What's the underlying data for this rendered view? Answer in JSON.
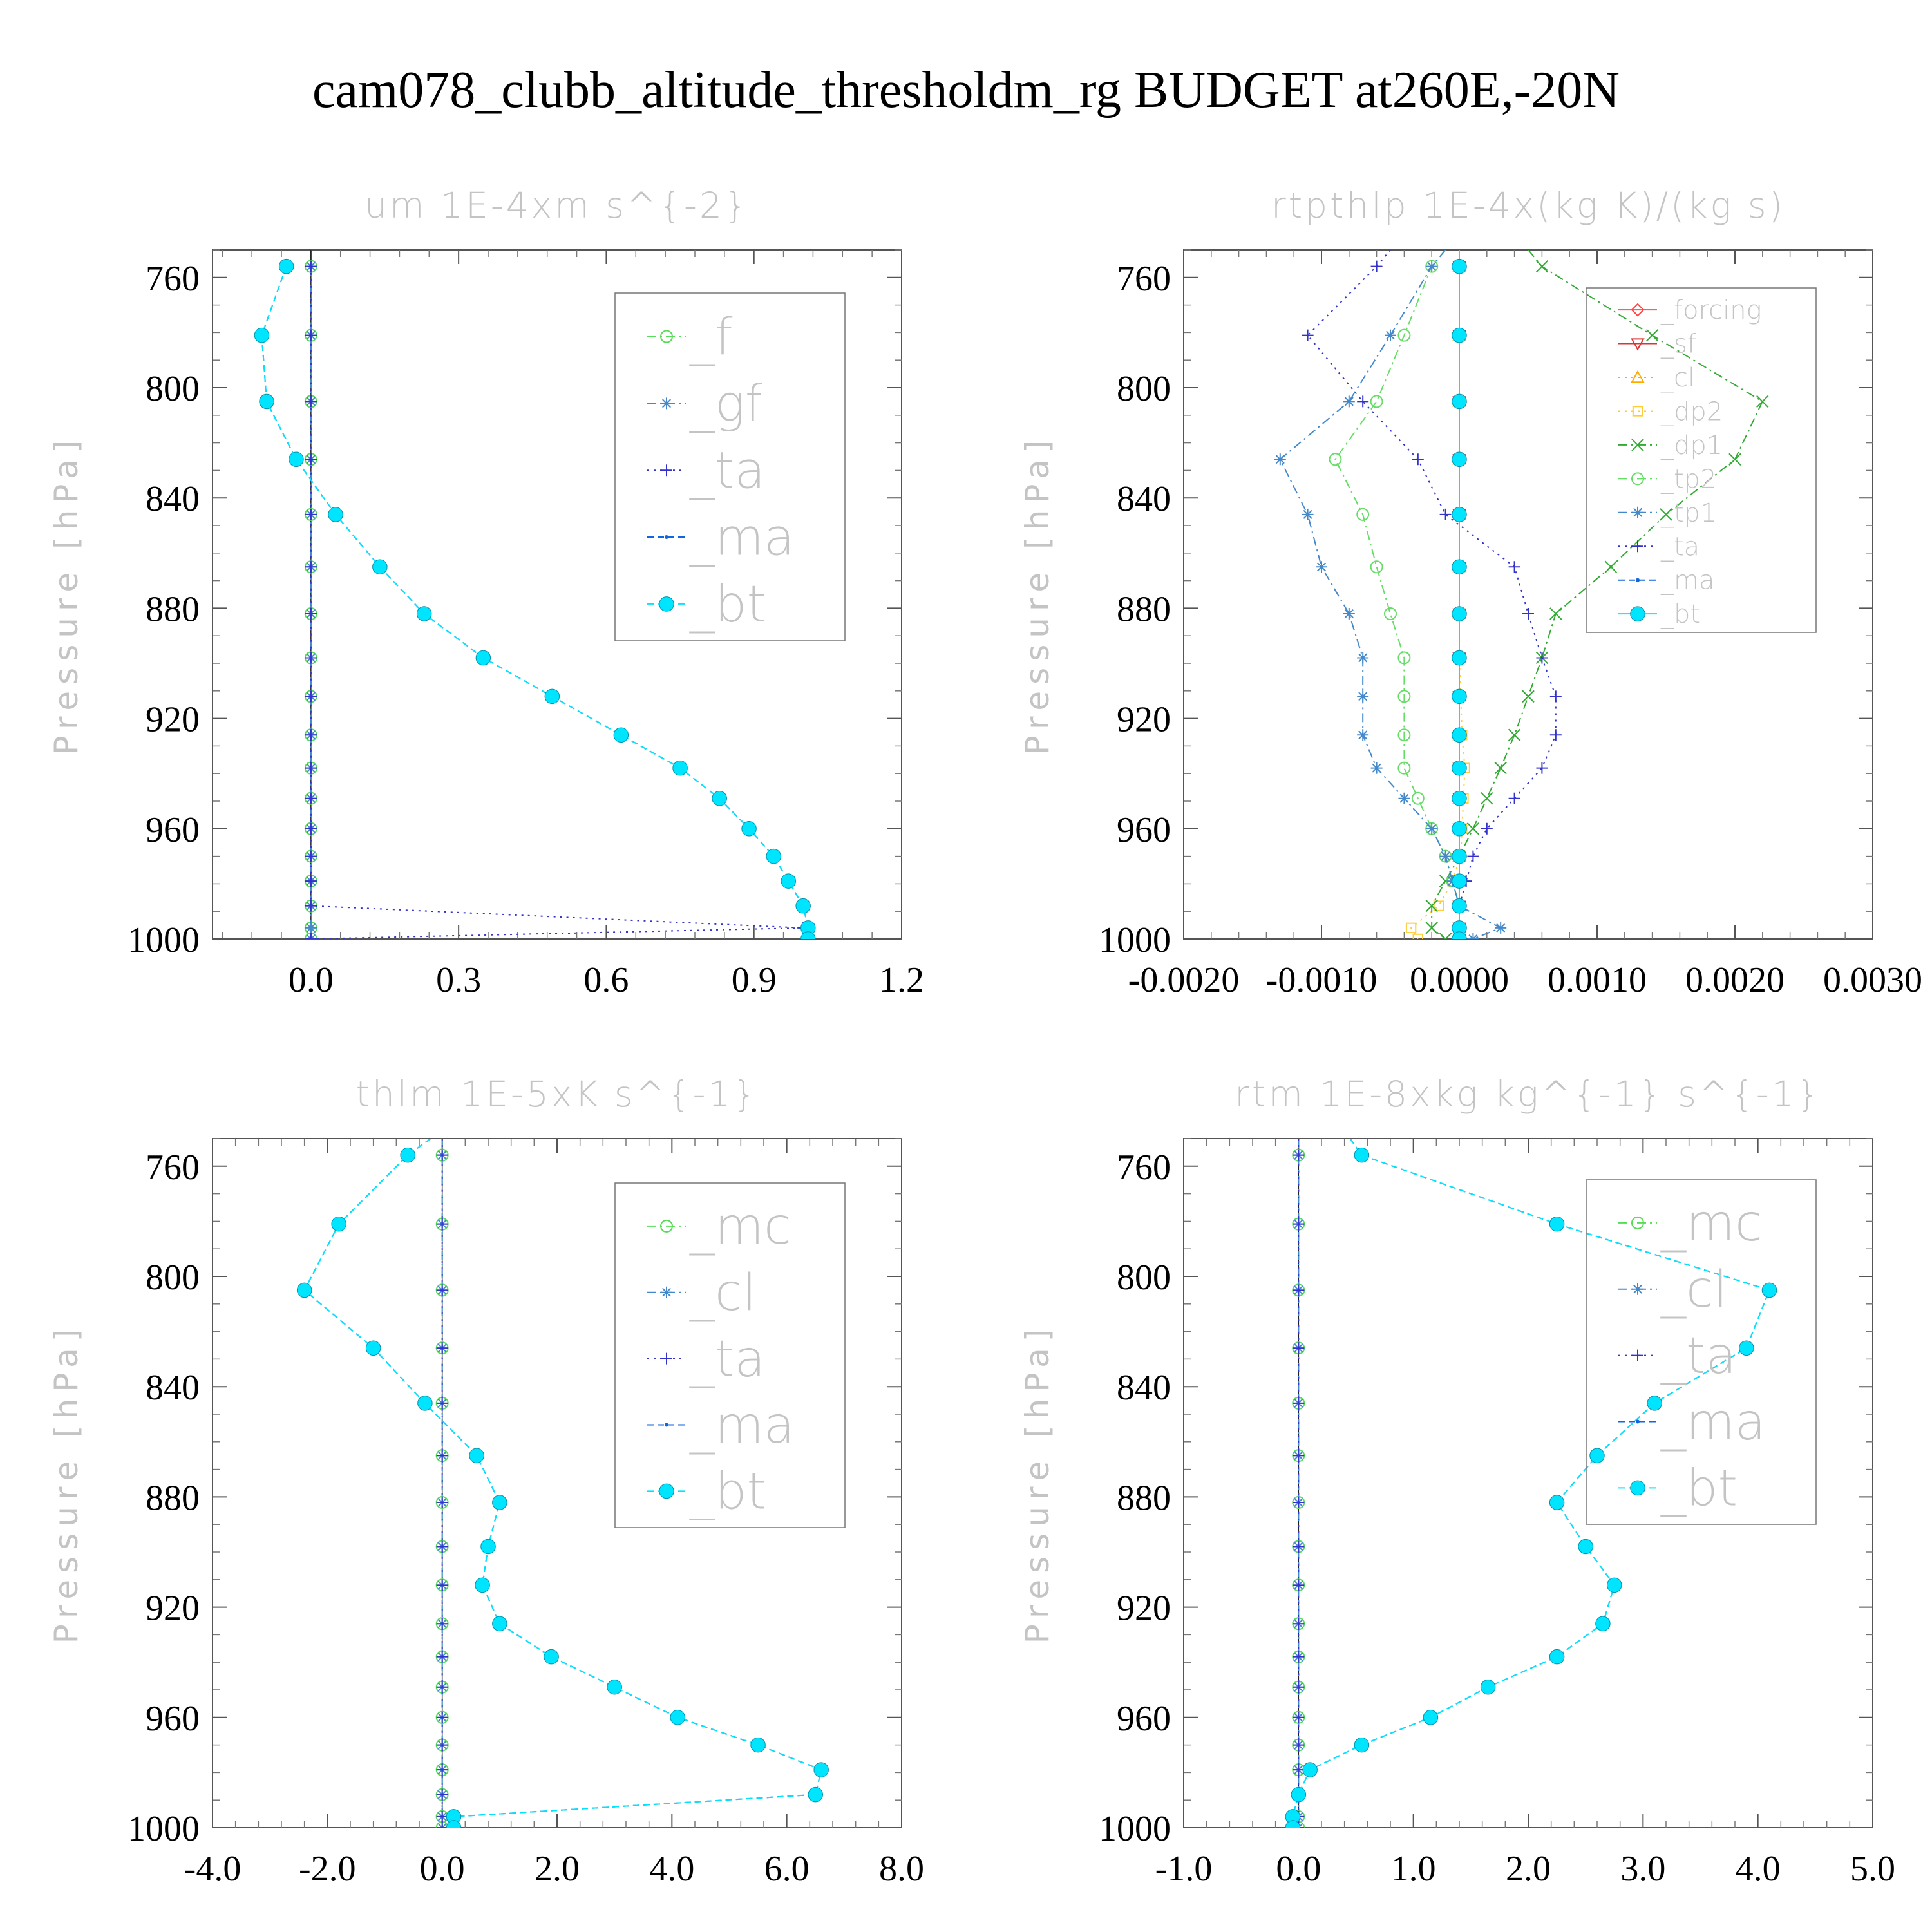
{
  "title": "cam078_clubb_altitude_thresholdm_rg  BUDGET at260E,-20N",
  "chart_data": [
    {
      "type": "line",
      "title": "um   1E-4xm s^{-2}",
      "xlabel": "",
      "ylabel": "Pressure [hPa]",
      "xlim": [
        -0.2,
        1.2
      ],
      "ylim": [
        1000,
        750
      ],
      "y_inverted": true,
      "xticks": [
        "0.0",
        "0.3",
        "0.6",
        "0.9",
        "1.2"
      ],
      "xtick_values": [
        0,
        0.3,
        0.6,
        0.9,
        1.2
      ],
      "yticks": [
        "760",
        "800",
        "840",
        "880",
        "920",
        "960",
        "1000"
      ],
      "ytick_values": [
        760,
        800,
        840,
        880,
        920,
        960,
        1000
      ],
      "legend": {
        "position": "top-right",
        "labels": [
          "_f",
          "_gf",
          "_ta",
          "_ma",
          "_bt"
        ]
      },
      "levels": [
        756,
        781,
        805,
        826,
        846,
        865,
        882,
        898,
        912,
        926,
        938,
        949,
        960,
        970,
        979,
        988,
        996,
        1000
      ],
      "series": [
        {
          "name": "_f",
          "color": "#55dd55",
          "marker": "circle",
          "dash": "dashdot",
          "values": [
            0,
            0,
            0,
            0,
            0,
            0,
            0,
            0,
            0,
            0,
            0,
            0,
            0,
            0,
            0,
            0,
            0,
            0
          ]
        },
        {
          "name": "_gf",
          "color": "#4488cc",
          "marker": "asterisk",
          "dash": "dashdot",
          "values": [
            0,
            0,
            0,
            0,
            0,
            0,
            0,
            0,
            0,
            0,
            0,
            0,
            0,
            0,
            0,
            0,
            0,
            0
          ]
        },
        {
          "name": "_ta",
          "color": "#3333cc",
          "marker": "plus",
          "dash": "dot",
          "values": [
            0,
            0,
            0,
            0,
            0,
            0,
            0,
            0,
            0,
            0,
            0,
            0,
            0,
            0,
            0,
            0,
            1.0,
            0
          ]
        },
        {
          "name": "_ma",
          "color": "#1166dd",
          "marker": "dot",
          "dash": "dash",
          "values": [
            -0.05,
            -0.1,
            -0.09,
            -0.03,
            0.05,
            0.14,
            0.23,
            0.35,
            0.49,
            0.63,
            0.75,
            0.83,
            0.89,
            0.94,
            0.97,
            1.0,
            1.01,
            1.01
          ]
        },
        {
          "name": "_bt",
          "color": "#00e5ff",
          "marker": "filled-circle",
          "dash": "dash",
          "values": [
            -0.05,
            -0.1,
            -0.09,
            -0.03,
            0.05,
            0.14,
            0.23,
            0.35,
            0.49,
            0.63,
            0.75,
            0.83,
            0.89,
            0.94,
            0.97,
            1.0,
            1.01,
            1.01
          ]
        }
      ]
    },
    {
      "type": "line",
      "title": "rtpthlp   1E-4x(kg K)/(kg s)",
      "xlabel": "",
      "ylabel": "Pressure [hPa]",
      "xlim": [
        -0.002,
        0.003
      ],
      "ylim": [
        1000,
        750
      ],
      "y_inverted": true,
      "xticks": [
        "-0.0020",
        "-0.0010",
        "0.0000",
        "0.0010",
        "0.0020",
        "0.0030"
      ],
      "xtick_values": [
        -0.002,
        -0.001,
        0,
        0.001,
        0.002,
        0.003
      ],
      "yticks": [
        "760",
        "800",
        "840",
        "880",
        "920",
        "960",
        "1000"
      ],
      "ytick_values": [
        760,
        800,
        840,
        880,
        920,
        960,
        1000
      ],
      "legend": {
        "position": "top-right",
        "labels": [
          "_forcing",
          "_sf",
          "_cl",
          "_dp2",
          "_dp1",
          "_tp2",
          "_tp1",
          "_ta",
          "_ma",
          "_bt"
        ]
      },
      "levels": [
        750,
        756,
        781,
        805,
        826,
        846,
        865,
        882,
        898,
        912,
        926,
        938,
        949,
        960,
        970,
        979,
        988,
        996,
        1000
      ],
      "series": [
        {
          "name": "_forcing",
          "color": "#ff4444",
          "marker": "diamond",
          "dash": "solid",
          "values": [
            0,
            0,
            0,
            0,
            0,
            0,
            0,
            0,
            0,
            0,
            0,
            0,
            0,
            0,
            0,
            0,
            0,
            0,
            0
          ]
        },
        {
          "name": "_sf",
          "color": "#dd3333",
          "marker": "triangle-down",
          "dash": "solid",
          "values": [
            0,
            0,
            0,
            0,
            0,
            0,
            0,
            0,
            0,
            0,
            0,
            0,
            0,
            0,
            0,
            0,
            0,
            0,
            0
          ]
        },
        {
          "name": "_cl",
          "color": "#ffaa00",
          "marker": "triangle-up",
          "dash": "dot",
          "values": [
            0,
            0,
            0,
            0,
            0,
            0,
            0,
            0,
            0,
            0,
            0,
            0,
            0,
            0,
            0,
            0,
            0,
            0,
            0
          ]
        },
        {
          "name": "_dp2",
          "color": "#ffcc33",
          "marker": "square",
          "dash": "dot",
          "values": [
            0,
            0,
            0,
            0,
            0,
            0,
            0,
            0,
            0,
            1e-05,
            2e-05,
            4e-05,
            3e-05,
            2e-05,
            1e-05,
            -5e-05,
            -0.00015,
            -0.00035,
            -0.0003
          ]
        },
        {
          "name": "_dp1",
          "color": "#33aa33",
          "marker": "x",
          "dash": "dashdot",
          "values": [
            0.0005,
            0.0006,
            0.0014,
            0.0022,
            0.002,
            0.0015,
            0.0011,
            0.0007,
            0.0006,
            0.0005,
            0.0004,
            0.0003,
            0.0002,
            0.0001,
            0,
            -0.0001,
            -0.0002,
            -0.0002,
            -0.0001
          ]
        },
        {
          "name": "_tp2",
          "color": "#66dd66",
          "marker": "circle",
          "dash": "dashdot",
          "values": [
            -0.0001,
            -0.0002,
            -0.0004,
            -0.0006,
            -0.0009,
            -0.0007,
            -0.0006,
            -0.0005,
            -0.0004,
            -0.0004,
            -0.0004,
            -0.0004,
            -0.0003,
            -0.0002,
            -0.0001,
            -5e-05,
            0,
            0,
            0
          ]
        },
        {
          "name": "_tp1",
          "color": "#4488cc",
          "marker": "asterisk",
          "dash": "dashdot",
          "values": [
            -0.0001,
            -0.0002,
            -0.0005,
            -0.0008,
            -0.0013,
            -0.0011,
            -0.001,
            -0.0008,
            -0.0007,
            -0.0007,
            -0.0007,
            -0.0006,
            -0.0004,
            -0.0002,
            -0.0001,
            -5e-05,
            0,
            0.0003,
            0.0001
          ]
        },
        {
          "name": "_ta",
          "color": "#3333cc",
          "marker": "plus",
          "dash": "dot",
          "values": [
            -0.0005,
            -0.0006,
            -0.0011,
            -0.0007,
            -0.0003,
            -0.0001,
            0.0004,
            0.0005,
            0.0006,
            0.0007,
            0.0007,
            0.0006,
            0.0004,
            0.0002,
            0.0001,
            5e-05,
            0,
            0,
            0
          ]
        },
        {
          "name": "_ma",
          "color": "#1166dd",
          "marker": "dot",
          "dash": "dash",
          "values": [
            0,
            0,
            0,
            0,
            0,
            0,
            0,
            0,
            0,
            0,
            0,
            0,
            0,
            0,
            0,
            0,
            0,
            0,
            0
          ]
        },
        {
          "name": "_bt",
          "color": "#00e5ff",
          "marker": "filled-circle",
          "dash": "solid",
          "values": [
            0,
            0,
            0,
            0,
            0,
            0,
            0,
            0,
            0,
            0,
            0,
            0,
            0,
            0,
            0,
            0,
            0,
            0,
            0
          ]
        }
      ]
    },
    {
      "type": "line",
      "title": "thlm   1E-5xK s^{-1}",
      "xlabel": "",
      "ylabel": "Pressure [hPa]",
      "xlim": [
        -4,
        8
      ],
      "ylim": [
        1000,
        750
      ],
      "y_inverted": true,
      "xticks": [
        "-4.0",
        "-2.0",
        "0.0",
        "2.0",
        "4.0",
        "6.0",
        "8.0"
      ],
      "xtick_values": [
        -4,
        -2,
        0,
        2,
        4,
        6,
        8
      ],
      "yticks": [
        "760",
        "800",
        "840",
        "880",
        "920",
        "960",
        "1000"
      ],
      "ytick_values": [
        760,
        800,
        840,
        880,
        920,
        960,
        1000
      ],
      "legend": {
        "position": "top-right",
        "labels": [
          "_mc",
          "_cl",
          "_ta",
          "_ma",
          "_bt"
        ]
      },
      "levels": [
        750,
        756,
        781,
        805,
        826,
        846,
        865,
        882,
        898,
        912,
        926,
        938,
        949,
        960,
        970,
        979,
        988,
        996,
        1000
      ],
      "series": [
        {
          "name": "_mc",
          "color": "#55dd55",
          "marker": "circle",
          "dash": "dashdot",
          "values": [
            0,
            0,
            0,
            0,
            0,
            0,
            0,
            0,
            0,
            0,
            0,
            0,
            0,
            0,
            0,
            0,
            0,
            0,
            0
          ]
        },
        {
          "name": "_cl",
          "color": "#4488cc",
          "marker": "asterisk",
          "dash": "dashdot",
          "values": [
            0,
            0,
            0,
            0,
            0,
            0,
            0,
            0,
            0,
            0,
            0,
            0,
            0,
            0,
            0,
            0,
            0,
            0,
            0
          ]
        },
        {
          "name": "_ta",
          "color": "#3333cc",
          "marker": "plus",
          "dash": "dot",
          "values": [
            0,
            0,
            0,
            0,
            0,
            0,
            0,
            0,
            0,
            0,
            0,
            0,
            0,
            0,
            0,
            0,
            0,
            0,
            0
          ]
        },
        {
          "name": "_ma",
          "color": "#1166dd",
          "marker": "dot",
          "dash": "dash",
          "values": [
            -0.2,
            -0.6,
            -1.8,
            -2.4,
            -1.2,
            -0.3,
            0.6,
            1.0,
            0.8,
            0.7,
            1.0,
            1.9,
            3.0,
            4.1,
            5.5,
            6.6,
            6.5,
            0.2,
            0.2
          ]
        },
        {
          "name": "_bt",
          "color": "#00e5ff",
          "marker": "filled-circle",
          "dash": "dash",
          "values": [
            -0.2,
            -0.6,
            -1.8,
            -2.4,
            -1.2,
            -0.3,
            0.6,
            1.0,
            0.8,
            0.7,
            1.0,
            1.9,
            3.0,
            4.1,
            5.5,
            6.6,
            6.5,
            0.2,
            0.2
          ]
        }
      ]
    },
    {
      "type": "line",
      "title": "rtm   1E-8xkg kg^{-1} s^{-1}",
      "xlabel": "",
      "ylabel": "Pressure [hPa]",
      "xlim": [
        -1,
        5
      ],
      "ylim": [
        1000,
        750
      ],
      "y_inverted": true,
      "xticks": [
        "-1.0",
        "0.0",
        "1.0",
        "2.0",
        "3.0",
        "4.0",
        "5.0"
      ],
      "xtick_values": [
        -1,
        0,
        1,
        2,
        3,
        4,
        5
      ],
      "yticks": [
        "760",
        "800",
        "840",
        "880",
        "920",
        "960",
        "1000"
      ],
      "ytick_values": [
        760,
        800,
        840,
        880,
        920,
        960,
        1000
      ],
      "legend": {
        "position": "top-right",
        "labels": [
          "_mc",
          "_cl",
          "_ta",
          "_ma",
          "_bt"
        ]
      },
      "levels": [
        750,
        756,
        781,
        805,
        826,
        846,
        865,
        882,
        898,
        912,
        926,
        938,
        949,
        960,
        970,
        979,
        988,
        996,
        1000
      ],
      "series": [
        {
          "name": "_mc",
          "color": "#55dd55",
          "marker": "circle",
          "dash": "dashdot",
          "values": [
            0,
            0,
            0,
            0,
            0,
            0,
            0,
            0,
            0,
            0,
            0,
            0,
            0,
            0,
            0,
            0,
            0,
            0,
            0
          ]
        },
        {
          "name": "_cl",
          "color": "#4488cc",
          "marker": "asterisk",
          "dash": "dashdot",
          "values": [
            0,
            0,
            0,
            0,
            0,
            0,
            0,
            0,
            0,
            0,
            0,
            0,
            0,
            0,
            0,
            0,
            0,
            0,
            0
          ]
        },
        {
          "name": "_ta",
          "color": "#3333cc",
          "marker": "plus",
          "dash": "dot",
          "values": [
            0,
            0,
            0,
            0,
            0,
            0,
            0,
            0,
            0,
            0,
            0,
            0,
            0,
            0,
            0,
            0,
            0,
            0,
            0
          ]
        },
        {
          "name": "_ma",
          "color": "#1166dd",
          "marker": "dot",
          "dash": "dash",
          "values": [
            0.45,
            0.55,
            2.25,
            4.1,
            3.9,
            3.1,
            2.6,
            2.25,
            2.5,
            2.75,
            2.65,
            2.25,
            1.65,
            1.15,
            0.55,
            0.1,
            0,
            -0.05,
            -0.05
          ]
        },
        {
          "name": "_bt",
          "color": "#00e5ff",
          "marker": "filled-circle",
          "dash": "dash",
          "values": [
            0.45,
            0.55,
            2.25,
            4.1,
            3.9,
            3.1,
            2.6,
            2.25,
            2.5,
            2.75,
            2.65,
            2.25,
            1.65,
            1.15,
            0.55,
            0.1,
            0,
            -0.05,
            -0.05
          ]
        }
      ]
    }
  ]
}
